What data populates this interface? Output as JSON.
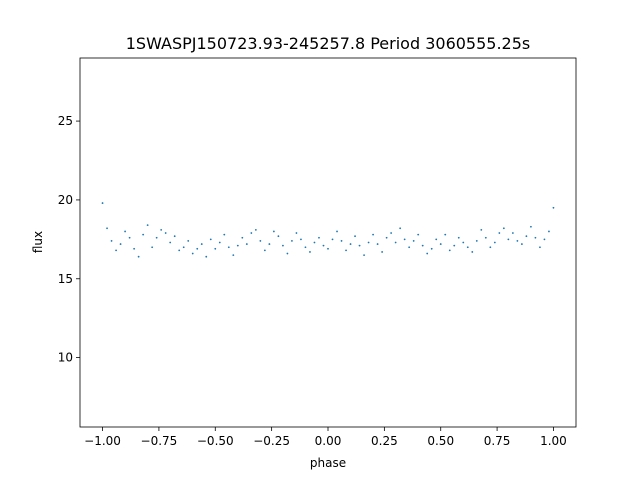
{
  "chart_data": {
    "type": "scatter",
    "title": "1SWASPJ150723.93-245257.8 Period 3060555.25s",
    "xlabel": "phase",
    "ylabel": "flux",
    "xlim": [
      -1.1,
      1.1
    ],
    "ylim": [
      5.6,
      29.0
    ],
    "x_ticks": [
      -1.0,
      -0.75,
      -0.5,
      -0.25,
      0.0,
      0.25,
      0.5,
      0.75,
      1.0
    ],
    "x_tick_labels": [
      "−1.00",
      "−0.75",
      "−0.50",
      "−0.25",
      "0.00",
      "0.25",
      "0.50",
      "0.75",
      "1.00"
    ],
    "y_ticks": [
      10,
      15,
      20,
      25
    ],
    "y_tick_labels": [
      "10",
      "15",
      "20",
      "25"
    ],
    "grid": false,
    "legend": "none",
    "marker_color": "#1f77b4",
    "series": [
      {
        "x": [
          -1.0,
          -0.98,
          -0.96,
          -0.94,
          -0.92,
          -0.9,
          -0.88,
          -0.86,
          -0.84,
          -0.82,
          -0.8,
          -0.78,
          -0.76,
          -0.74,
          -0.72,
          -0.7,
          -0.68,
          -0.66,
          -0.64,
          -0.62,
          -0.6,
          -0.58,
          -0.56,
          -0.54,
          -0.52,
          -0.5,
          -0.48,
          -0.46,
          -0.44,
          -0.42,
          -0.4,
          -0.38,
          -0.36,
          -0.34,
          -0.32,
          -0.3,
          -0.28,
          -0.26,
          -0.24,
          -0.22,
          -0.2,
          -0.18,
          -0.16,
          -0.14,
          -0.12,
          -0.1,
          -0.08,
          -0.06,
          -0.04,
          -0.02,
          0.0,
          0.02,
          0.04,
          0.06,
          0.08,
          0.1,
          0.12,
          0.14,
          0.16,
          0.18,
          0.2,
          0.22,
          0.24,
          0.26,
          0.28,
          0.3,
          0.32,
          0.34,
          0.36,
          0.38,
          0.4,
          0.42,
          0.44,
          0.46,
          0.48,
          0.5,
          0.52,
          0.54,
          0.56,
          0.58,
          0.6,
          0.62,
          0.64,
          0.66,
          0.68,
          0.7,
          0.72,
          0.74,
          0.76,
          0.78,
          0.8,
          0.82,
          0.84,
          0.86,
          0.88,
          0.9,
          0.92,
          0.94,
          0.96,
          0.98,
          1.0
        ],
        "y": [
          19.8,
          18.2,
          17.4,
          16.8,
          17.2,
          18.0,
          17.6,
          16.9,
          16.4,
          17.8,
          18.4,
          17.0,
          17.6,
          18.1,
          17.9,
          17.3,
          17.7,
          16.8,
          17.0,
          17.4,
          16.6,
          16.9,
          17.2,
          16.4,
          17.5,
          16.9,
          17.3,
          17.8,
          17.0,
          16.5,
          17.1,
          17.6,
          17.2,
          17.9,
          18.1,
          17.4,
          16.8,
          17.2,
          18.0,
          17.7,
          17.1,
          16.6,
          17.4,
          17.9,
          17.5,
          17.0,
          16.7,
          17.3,
          17.6,
          17.1,
          16.9,
          17.5,
          18.0,
          17.4,
          16.8,
          17.2,
          17.7,
          17.1,
          16.5,
          17.3,
          17.8,
          17.2,
          16.7,
          17.6,
          17.9,
          17.3,
          18.2,
          17.5,
          17.0,
          17.4,
          17.8,
          17.1,
          16.6,
          16.9,
          17.5,
          17.2,
          17.8,
          16.8,
          17.1,
          17.6,
          17.3,
          17.0,
          16.7,
          17.4,
          18.1,
          17.6,
          17.0,
          17.3,
          17.9,
          18.2,
          17.5,
          17.9,
          17.4,
          17.2,
          17.7,
          18.3,
          17.6,
          17.0,
          17.5,
          18.0,
          19.5
        ]
      }
    ]
  }
}
